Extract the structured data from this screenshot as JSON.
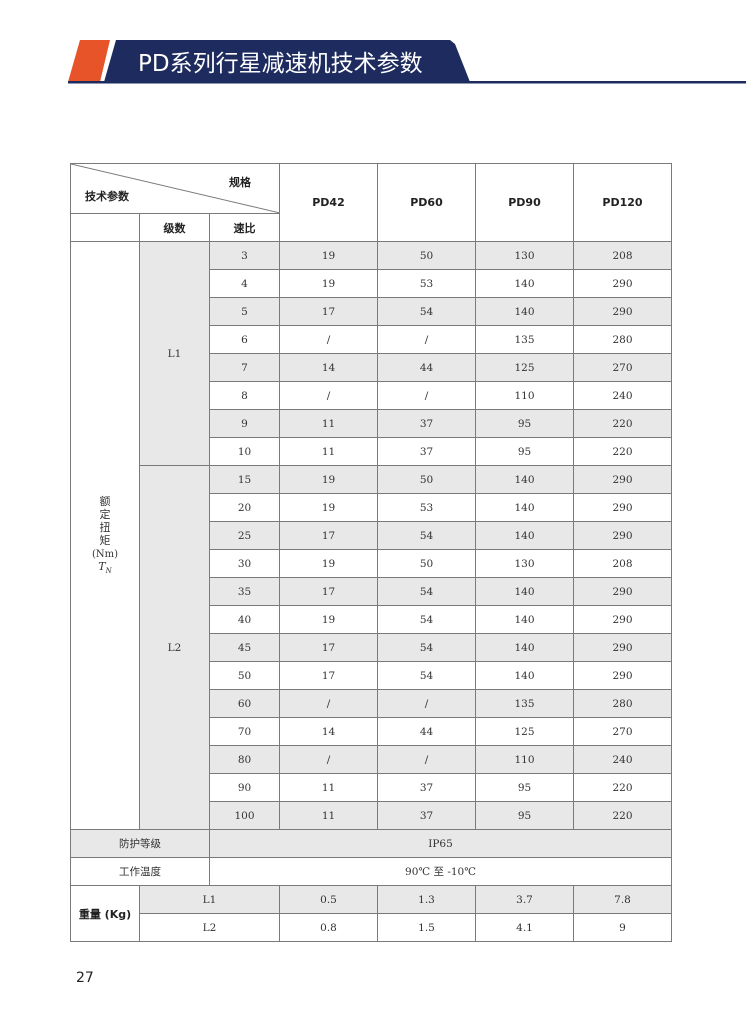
{
  "header": {
    "title": "PD系列行星减速机技术参数",
    "accent_orange": "#e8542a",
    "accent_navy": "#1e2b5e"
  },
  "table": {
    "corner_top": "规格",
    "corner_bottom": "技术参数",
    "stage_header": "级数",
    "ratio_header": "速比",
    "models": [
      "PD42",
      "PD60",
      "PD90",
      "PD120"
    ],
    "torque_label_chars": [
      "额",
      "定",
      "扭",
      "矩"
    ],
    "torque_unit": "(Nm)",
    "torque_symbol": "T",
    "torque_subscript": "N",
    "stages": [
      {
        "name": "L1",
        "rows": [
          {
            "ratio": "3",
            "values": [
              "19",
              "50",
              "130",
              "208"
            ]
          },
          {
            "ratio": "4",
            "values": [
              "19",
              "53",
              "140",
              "290"
            ]
          },
          {
            "ratio": "5",
            "values": [
              "17",
              "54",
              "140",
              "290"
            ]
          },
          {
            "ratio": "6",
            "values": [
              "/",
              "/",
              "135",
              "280"
            ]
          },
          {
            "ratio": "7",
            "values": [
              "14",
              "44",
              "125",
              "270"
            ]
          },
          {
            "ratio": "8",
            "values": [
              "/",
              "/",
              "110",
              "240"
            ]
          },
          {
            "ratio": "9",
            "values": [
              "11",
              "37",
              "95",
              "220"
            ]
          },
          {
            "ratio": "10",
            "values": [
              "11",
              "37",
              "95",
              "220"
            ]
          }
        ]
      },
      {
        "name": "L2",
        "rows": [
          {
            "ratio": "15",
            "values": [
              "19",
              "50",
              "140",
              "290"
            ]
          },
          {
            "ratio": "20",
            "values": [
              "19",
              "53",
              "140",
              "290"
            ]
          },
          {
            "ratio": "25",
            "values": [
              "17",
              "54",
              "140",
              "290"
            ]
          },
          {
            "ratio": "30",
            "values": [
              "19",
              "50",
              "130",
              "208"
            ]
          },
          {
            "ratio": "35",
            "values": [
              "17",
              "54",
              "140",
              "290"
            ]
          },
          {
            "ratio": "40",
            "values": [
              "19",
              "54",
              "140",
              "290"
            ]
          },
          {
            "ratio": "45",
            "values": [
              "17",
              "54",
              "140",
              "290"
            ]
          },
          {
            "ratio": "50",
            "values": [
              "17",
              "54",
              "140",
              "290"
            ]
          },
          {
            "ratio": "60",
            "values": [
              "/",
              "/",
              "135",
              "280"
            ]
          },
          {
            "ratio": "70",
            "values": [
              "14",
              "44",
              "125",
              "270"
            ]
          },
          {
            "ratio": "80",
            "values": [
              "/",
              "/",
              "110",
              "240"
            ]
          },
          {
            "ratio": "90",
            "values": [
              "11",
              "37",
              "95",
              "220"
            ]
          },
          {
            "ratio": "100",
            "values": [
              "11",
              "37",
              "95",
              "220"
            ]
          }
        ]
      }
    ],
    "protection": {
      "label": "防护等级",
      "value": "IP65"
    },
    "temperature": {
      "label": "工作温度",
      "value": "90℃ 至 -10℃"
    },
    "weight": {
      "label": "重量 (Kg)",
      "rows": [
        {
          "stage": "L1",
          "values": [
            "0.5",
            "1.3",
            "3.7",
            "7.8"
          ]
        },
        {
          "stage": "L2",
          "values": [
            "0.8",
            "1.5",
            "4.1",
            "9"
          ]
        }
      ]
    }
  },
  "page_number": "27"
}
